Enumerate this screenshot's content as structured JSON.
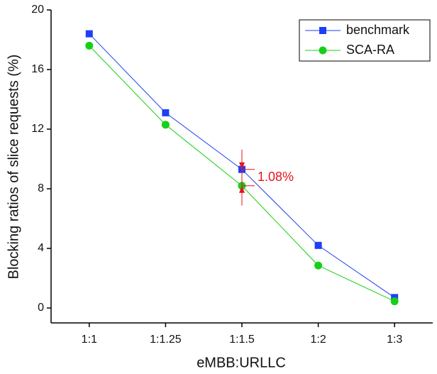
{
  "chart_data": {
    "type": "line",
    "xlabel": "eMBB:URLLC",
    "ylabel": "Blocking ratios of slice requests (%)",
    "categories": [
      "1:1",
      "1:1.25",
      "1:1.5",
      "1:2",
      "1:3"
    ],
    "series": [
      {
        "name": "benchmark",
        "color": "#1f3ff5",
        "marker": "square",
        "values": [
          18.4,
          13.1,
          9.3,
          4.2,
          0.7
        ]
      },
      {
        "name": "SCA-RA",
        "color": "#16d016",
        "marker": "circle",
        "values": [
          17.6,
          12.3,
          8.2,
          2.85,
          0.45
        ]
      }
    ],
    "annotation": {
      "text": "1.08%",
      "color": "#e8141c"
    },
    "ylim": [
      -1,
      20
    ],
    "yticks": [
      0,
      4,
      8,
      12,
      16,
      20
    ],
    "legend": "upper-right"
  }
}
